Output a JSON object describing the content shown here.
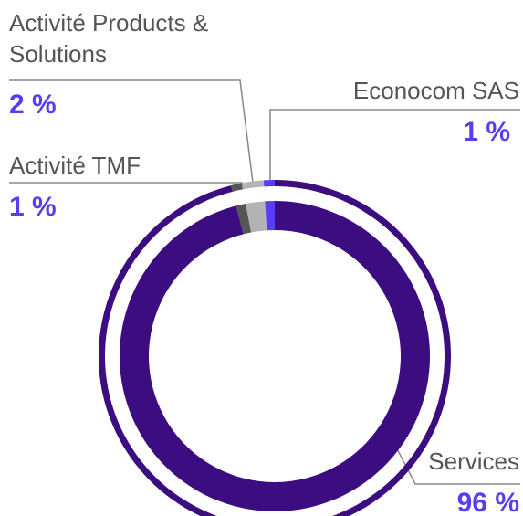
{
  "chart_data": {
    "type": "donut",
    "categories": [
      "Services",
      "Activité TMF",
      "Activité Products & Solutions",
      "Econocom SAS"
    ],
    "values": [
      96,
      1,
      2,
      1
    ],
    "value_labels": [
      "96 %",
      "1 %",
      "2 %",
      "1 %"
    ],
    "colors": [
      "#3b0d80",
      "#555555",
      "#b3b3b3",
      "#5b3cf5"
    ]
  }
}
